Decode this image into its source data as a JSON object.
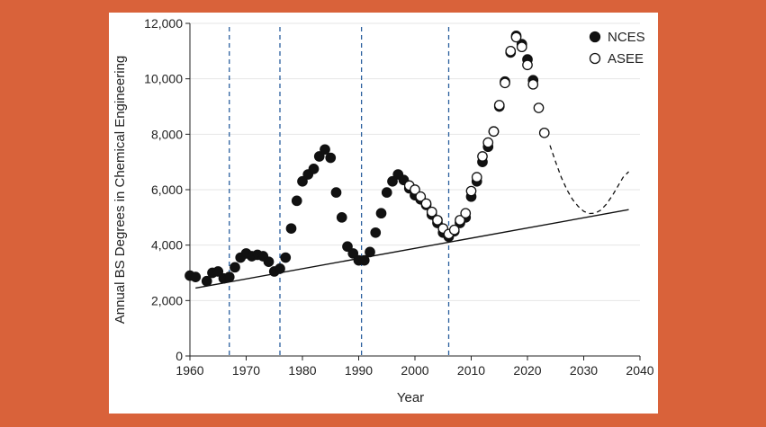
{
  "colors": {
    "background": "#d9623a",
    "panel": "#ffffff",
    "marker": "#111111",
    "vline": "#2a5f9e",
    "grid": "#e6e6e6"
  },
  "chart_data": {
    "type": "scatter",
    "xlabel": "Year",
    "ylabel": "Annual BS Degrees in Chemical Engineering",
    "xlim": [
      1960,
      2040
    ],
    "ylim": [
      0,
      12000
    ],
    "x_ticks": [
      1960,
      1970,
      1980,
      1990,
      2000,
      2010,
      2020,
      2030,
      2040
    ],
    "y_ticks": [
      0,
      2000,
      4000,
      6000,
      8000,
      10000,
      12000
    ],
    "x_tick_labels": [
      "1960",
      "1970",
      "1980",
      "1990",
      "2000",
      "2010",
      "2020",
      "2030",
      "2040"
    ],
    "y_tick_labels": [
      "0",
      "2,000",
      "4,000",
      "6,000",
      "8,000",
      "10,000",
      "12,000"
    ],
    "grid": "horizontal",
    "legend_position": "top-right",
    "series": [
      {
        "name": "NCES",
        "marker": "filled-circle",
        "points": [
          [
            1960,
            2900
          ],
          [
            1961,
            2850
          ],
          [
            1963,
            2700
          ],
          [
            1964,
            3000
          ],
          [
            1965,
            3050
          ],
          [
            1966,
            2800
          ],
          [
            1967,
            2850
          ],
          [
            1968,
            3200
          ],
          [
            1969,
            3550
          ],
          [
            1970,
            3700
          ],
          [
            1971,
            3600
          ],
          [
            1972,
            3650
          ],
          [
            1973,
            3600
          ],
          [
            1974,
            3400
          ],
          [
            1975,
            3050
          ],
          [
            1976,
            3150
          ],
          [
            1977,
            3550
          ],
          [
            1978,
            4600
          ],
          [
            1979,
            5600
          ],
          [
            1980,
            6300
          ],
          [
            1981,
            6550
          ],
          [
            1982,
            6750
          ],
          [
            1983,
            7200
          ],
          [
            1984,
            7450
          ],
          [
            1985,
            7150
          ],
          [
            1986,
            5900
          ],
          [
            1987,
            5000
          ],
          [
            1988,
            3950
          ],
          [
            1989,
            3700
          ],
          [
            1990,
            3450
          ],
          [
            1991,
            3450
          ],
          [
            1992,
            3750
          ],
          [
            1993,
            4450
          ],
          [
            1994,
            5150
          ],
          [
            1995,
            5900
          ],
          [
            1996,
            6300
          ],
          [
            1997,
            6550
          ],
          [
            1998,
            6350
          ],
          [
            1999,
            6050
          ],
          [
            2000,
            5800
          ],
          [
            2001,
            5650
          ],
          [
            2002,
            5450
          ],
          [
            2003,
            5100
          ],
          [
            2004,
            4800
          ],
          [
            2005,
            4450
          ],
          [
            2006,
            4300
          ],
          [
            2007,
            4500
          ],
          [
            2008,
            4800
          ],
          [
            2009,
            5000
          ],
          [
            2010,
            5750
          ],
          [
            2011,
            6300
          ],
          [
            2012,
            7000
          ],
          [
            2013,
            7550
          ],
          [
            2014,
            8100
          ],
          [
            2015,
            9000
          ],
          [
            2016,
            9900
          ],
          [
            2017,
            10950
          ],
          [
            2018,
            11550
          ],
          [
            2019,
            11250
          ],
          [
            2020,
            10700
          ],
          [
            2021,
            9950
          ]
        ]
      },
      {
        "name": "ASEE",
        "marker": "open-circle",
        "points": [
          [
            1999,
            6150
          ],
          [
            2000,
            6000
          ],
          [
            2001,
            5750
          ],
          [
            2002,
            5500
          ],
          [
            2003,
            5200
          ],
          [
            2004,
            4900
          ],
          [
            2005,
            4600
          ],
          [
            2006,
            4400
          ],
          [
            2007,
            4550
          ],
          [
            2008,
            4900
          ],
          [
            2009,
            5150
          ],
          [
            2010,
            5950
          ],
          [
            2011,
            6450
          ],
          [
            2012,
            7200
          ],
          [
            2013,
            7700
          ],
          [
            2014,
            8100
          ],
          [
            2015,
            9050
          ],
          [
            2016,
            9850
          ],
          [
            2017,
            11000
          ],
          [
            2018,
            11500
          ],
          [
            2019,
            11150
          ],
          [
            2020,
            10500
          ],
          [
            2021,
            9800
          ],
          [
            2022,
            8950
          ],
          [
            2023,
            8050
          ]
        ]
      }
    ],
    "trend_line": {
      "style": "solid",
      "points": [
        [
          1961,
          2450
        ],
        [
          2038,
          5280
        ]
      ]
    },
    "projection": {
      "style": "dashed",
      "points": [
        [
          2024,
          7600
        ],
        [
          2025,
          7000
        ],
        [
          2026,
          6450
        ],
        [
          2027,
          6000
        ],
        [
          2028,
          5650
        ],
        [
          2029,
          5400
        ],
        [
          2030,
          5220
        ],
        [
          2031,
          5140
        ],
        [
          2032,
          5150
        ],
        [
          2033,
          5260
        ],
        [
          2034,
          5470
        ],
        [
          2035,
          5760
        ],
        [
          2036,
          6100
        ],
        [
          2037,
          6450
        ],
        [
          2038,
          6650
        ]
      ]
    },
    "vertical_lines": {
      "style": "dashed",
      "x": [
        1967,
        1976,
        1990.5,
        2006
      ]
    }
  }
}
